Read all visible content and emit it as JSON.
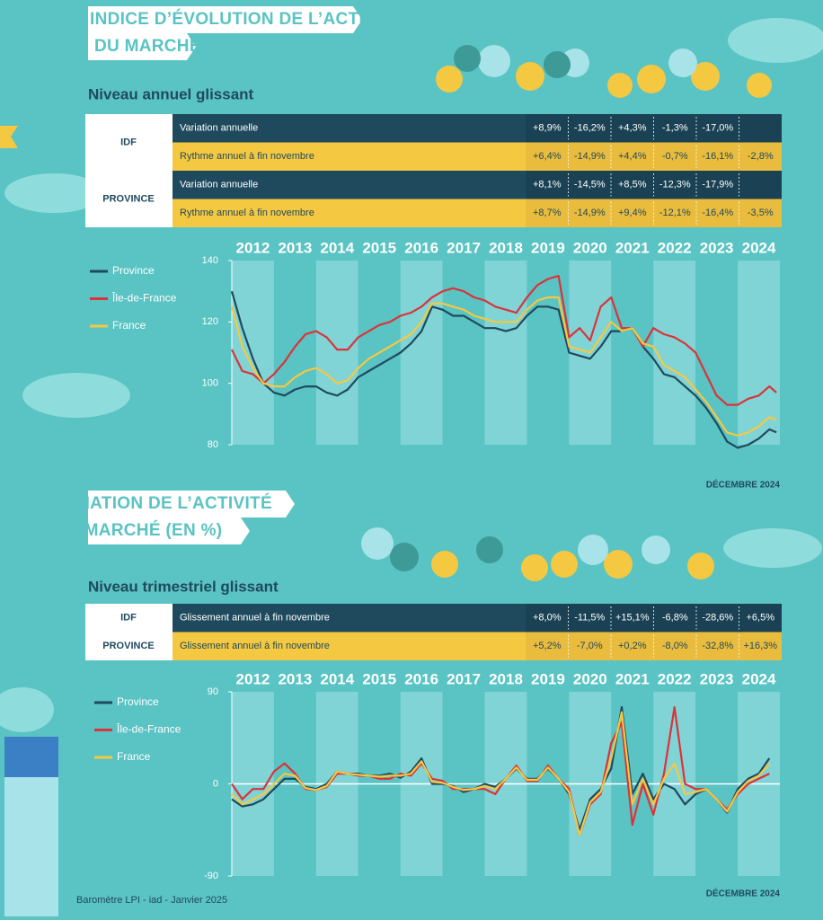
{
  "sections": [
    {
      "title_lines": [
        "INDICE D’ÉVOLUTION DE L’ACTIVITÉ",
        "DU MARCHÉ"
      ],
      "subtitle": "Niveau annuel glissant",
      "date": "DÉCEMBRE 2024"
    },
    {
      "title_lines": [
        "VARIATION DE L’ACTIVITÉ",
        "DU MARCHÉ (EN %)"
      ],
      "subtitle": "Niveau trimestriel glissant",
      "date": "DÉCEMBRE 2024"
    }
  ],
  "footer": "Baromètre LPI - iad - Janvier 2025",
  "tables": [
    {
      "rows": [
        {
          "group": "IDF",
          "label": "Variation annuelle",
          "values": [
            "+8,9%",
            "-16,2%",
            "+4,3%",
            "-1,3%",
            "-17,0%",
            null
          ]
        },
        {
          "label": "Rythme annuel à fin novembre",
          "values": [
            "+6,4%",
            "-14,9%",
            "+4,4%",
            "-0,7%",
            "-16,1%",
            "-2,8%"
          ]
        },
        {
          "group": "PROVINCE",
          "label": "Variation annuelle",
          "values": [
            "+8,1%",
            "-14,5%",
            "+8,5%",
            "-12,3%",
            "-17,9%",
            null
          ]
        },
        {
          "label": "Rythme annuel à fin novembre",
          "values": [
            "+8,7%",
            "-14,9%",
            "+9,4%",
            "-12,1%",
            "-16,4%",
            "-3,5%"
          ]
        }
      ]
    },
    {
      "rows": [
        {
          "group": "IDF",
          "label": "Glissement annuel à fin novembre",
          "values": [
            "+8,0%",
            "-11,5%",
            "+15,1%",
            "-6,8%",
            "-28,6%",
            "+6,5%"
          ]
        },
        {
          "group": "PROVINCE",
          "label": "Glissement annuel à fin novembre",
          "values": [
            "+5,2%",
            "-7,0%",
            "+0,2%",
            "-8,0%",
            "-32,8%",
            "+16,3%"
          ]
        }
      ]
    }
  ],
  "chart_data": [
    {
      "type": "line",
      "xlim": [
        2012,
        2025
      ],
      "xticks": [
        {
          "value": 2012.5,
          "label": "2012"
        },
        {
          "value": 2013.5,
          "label": "2013"
        },
        {
          "value": 2014.5,
          "label": "2014"
        },
        {
          "value": 2015.5,
          "label": "2015"
        },
        {
          "value": 2016.5,
          "label": "2016"
        },
        {
          "value": 2017.5,
          "label": "2017"
        },
        {
          "value": 2018.5,
          "label": "2018"
        },
        {
          "value": 2019.5,
          "label": "2019"
        },
        {
          "value": 2020.5,
          "label": "2020"
        },
        {
          "value": 2021.5,
          "label": "2021"
        },
        {
          "value": 2022.5,
          "label": "2022"
        },
        {
          "value": 2023.5,
          "label": "2023"
        },
        {
          "value": 2024.5,
          "label": "2024"
        }
      ],
      "ylim": [
        80,
        140
      ],
      "yticks": [
        80,
        100,
        120,
        140
      ],
      "x": [
        2012,
        2012.25,
        2012.5,
        2012.75,
        2013,
        2013.25,
        2013.5,
        2013.75,
        2014,
        2014.25,
        2014.5,
        2014.75,
        2015,
        2015.25,
        2015.5,
        2015.75,
        2016,
        2016.25,
        2016.5,
        2016.75,
        2017,
        2017.25,
        2017.5,
        2017.75,
        2018,
        2018.25,
        2018.5,
        2018.75,
        2019,
        2019.25,
        2019.5,
        2019.75,
        2020,
        2020.25,
        2020.5,
        2020.75,
        2021,
        2021.25,
        2021.5,
        2021.75,
        2022,
        2022.25,
        2022.5,
        2022.75,
        2023,
        2023.25,
        2023.5,
        2023.75,
        2024,
        2024.25,
        2024.5,
        2024.75,
        2024.92
      ],
      "series": [
        {
          "name": "Province",
          "color": "#1f4a5e",
          "values": [
            130,
            118,
            108,
            100,
            97,
            96,
            98,
            99,
            99,
            97,
            96,
            98,
            102,
            104,
            106,
            108,
            110,
            113,
            117,
            125,
            124,
            122,
            122,
            120,
            118,
            118,
            117,
            118,
            122,
            125,
            125,
            124,
            110,
            109,
            108,
            112,
            117,
            117,
            118,
            112,
            108,
            103,
            102,
            99,
            96,
            92,
            87,
            81,
            79,
            80,
            82,
            85,
            84
          ]
        },
        {
          "name": "Île-de-France",
          "color": "#d9343a",
          "values": [
            111,
            104,
            103,
            100,
            103,
            107,
            112,
            116,
            117,
            115,
            111,
            111,
            115,
            117,
            119,
            120,
            122,
            123,
            125,
            128,
            130,
            131,
            130,
            128,
            127,
            125,
            124,
            123,
            128,
            132,
            134,
            135,
            115,
            118,
            114,
            125,
            128,
            118,
            118,
            112,
            118,
            116,
            115,
            113,
            110,
            103,
            96,
            93,
            93,
            95,
            96,
            99,
            97
          ]
        },
        {
          "name": "France",
          "color": "#f5c842",
          "values": [
            125,
            112,
            105,
            100,
            99,
            99,
            102,
            104,
            105,
            103,
            100,
            101,
            105,
            108,
            110,
            112,
            114,
            116,
            120,
            126,
            126,
            125,
            124,
            122,
            121,
            120,
            120,
            120,
            124,
            127,
            128,
            128,
            112,
            111,
            110,
            115,
            120,
            117,
            118,
            113,
            112,
            106,
            104,
            102,
            98,
            94,
            89,
            84,
            83,
            84,
            86,
            89,
            88
          ]
        }
      ]
    },
    {
      "type": "line",
      "xlim": [
        2012,
        2025
      ],
      "xticks": [
        {
          "value": 2012.5,
          "label": "2012"
        },
        {
          "value": 2013.5,
          "label": "2013"
        },
        {
          "value": 2014.5,
          "label": "2014"
        },
        {
          "value": 2015.5,
          "label": "2015"
        },
        {
          "value": 2016.5,
          "label": "2016"
        },
        {
          "value": 2017.5,
          "label": "2017"
        },
        {
          "value": 2018.5,
          "label": "2018"
        },
        {
          "value": 2019.5,
          "label": "2019"
        },
        {
          "value": 2020.5,
          "label": "2020"
        },
        {
          "value": 2021.5,
          "label": "2021"
        },
        {
          "value": 2022.5,
          "label": "2022"
        },
        {
          "value": 2023.5,
          "label": "2023"
        },
        {
          "value": 2024.5,
          "label": "2024"
        }
      ],
      "ylim": [
        -90,
        90
      ],
      "yticks": [
        -90,
        0,
        90
      ],
      "x": [
        2012,
        2012.25,
        2012.5,
        2012.75,
        2013,
        2013.25,
        2013.5,
        2013.75,
        2014,
        2014.25,
        2014.5,
        2014.75,
        2015,
        2015.25,
        2015.5,
        2015.75,
        2016,
        2016.25,
        2016.5,
        2016.75,
        2017,
        2017.25,
        2017.5,
        2017.75,
        2018,
        2018.25,
        2018.5,
        2018.75,
        2019,
        2019.25,
        2019.5,
        2019.75,
        2020,
        2020.25,
        2020.5,
        2020.75,
        2021,
        2021.25,
        2021.5,
        2021.75,
        2022,
        2022.25,
        2022.5,
        2022.75,
        2023,
        2023.25,
        2023.5,
        2023.75,
        2024,
        2024.25,
        2024.5,
        2024.75
      ],
      "series": [
        {
          "name": "Province",
          "color": "#1f4a5e",
          "values": [
            -15,
            -22,
            -20,
            -15,
            -5,
            5,
            5,
            -3,
            -5,
            0,
            12,
            10,
            10,
            8,
            8,
            10,
            6,
            12,
            25,
            0,
            0,
            -2,
            -8,
            -5,
            0,
            -3,
            5,
            15,
            5,
            5,
            15,
            5,
            -10,
            -45,
            -15,
            -5,
            15,
            75,
            -10,
            10,
            -15,
            0,
            -5,
            -20,
            -10,
            -5,
            -15,
            -28,
            -5,
            5,
            10,
            25
          ]
        },
        {
          "name": "Île-de-France",
          "color": "#d9343a",
          "values": [
            0,
            -15,
            -5,
            -5,
            12,
            20,
            10,
            -5,
            -6,
            -3,
            10,
            10,
            8,
            8,
            5,
            5,
            10,
            8,
            20,
            5,
            3,
            -5,
            -5,
            -5,
            -5,
            -10,
            5,
            18,
            3,
            3,
            18,
            5,
            -5,
            -50,
            -20,
            -10,
            40,
            60,
            -40,
            0,
            -30,
            10,
            75,
            0,
            -5,
            -5,
            -15,
            -25,
            -10,
            0,
            5,
            10
          ]
        },
        {
          "name": "France",
          "color": "#f5c842",
          "values": [
            -10,
            -20,
            -15,
            -10,
            0,
            10,
            8,
            -4,
            -6,
            -2,
            12,
            10,
            9,
            8,
            7,
            8,
            8,
            10,
            22,
            2,
            1,
            -3,
            -6,
            -5,
            -2,
            -5,
            5,
            16,
            4,
            4,
            16,
            5,
            -8,
            -50,
            -18,
            -8,
            25,
            70,
            -20,
            5,
            -20,
            5,
            20,
            -10,
            -8,
            -5,
            -15,
            -27,
            -8,
            3,
            8,
            20
          ]
        }
      ]
    }
  ]
}
